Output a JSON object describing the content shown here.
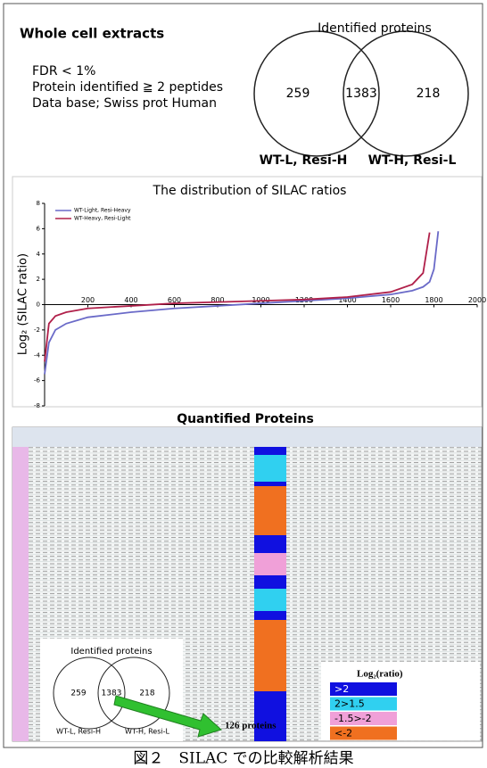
{
  "header": {
    "title": "Whole cell extracts",
    "notes": [
      "FDR < 1%",
      "Protein identified ≧ 2 peptides",
      "Data base; Swiss prot Human"
    ]
  },
  "venn": {
    "title": "Identified proteins",
    "left": "259",
    "overlap": "1383",
    "right": "218",
    "left_label": "WT-L, Resi-H",
    "right_label": "WT-H, Resi-L"
  },
  "chart_data": {
    "type": "line",
    "title": "The distribution of SILAC ratios",
    "y_label": "Log₂ (SILAC ratio)",
    "x": [
      0,
      20,
      50,
      100,
      200,
      400,
      600,
      800,
      1000,
      1200,
      1400,
      1600,
      1700,
      1750,
      1780,
      1800,
      1820
    ],
    "series": [
      {
        "name": "WT-Light, Resi-Heavy",
        "color": "#6a6ac8",
        "values": [
          -5.5,
          -3,
          -2,
          -1.5,
          -1,
          -0.6,
          -0.3,
          -0.1,
          0.1,
          0.3,
          0.5,
          0.8,
          1.1,
          1.4,
          1.8,
          2.8,
          5.8
        ]
      },
      {
        "name": "WT-Heavy, Resi-Light",
        "color": "#b0204a",
        "values": [
          -4.5,
          -1.5,
          -0.9,
          -0.6,
          -0.3,
          -0.1,
          0.1,
          0.2,
          0.3,
          0.4,
          0.6,
          1.0,
          1.6,
          2.5,
          5.7,
          null,
          null
        ]
      }
    ],
    "xlim": [
      0,
      2000
    ],
    "xticks": [
      200,
      400,
      600,
      800,
      1000,
      1200,
      1400,
      1600,
      1800,
      2000
    ],
    "ylim": [
      -8,
      8
    ],
    "yticks": [
      -8,
      -6,
      -4,
      -2,
      0,
      2,
      4,
      6,
      8
    ],
    "legend": "upper left"
  },
  "quantified": {
    "title": "Quantified Proteins",
    "inset_venn": {
      "title": "Identified proteins",
      "left": "259",
      "overlap": "1383",
      "right": "218",
      "left_label": "WT-L, Resi-H",
      "right_label": "WT-H, Resi-L"
    },
    "result": "126 proteins",
    "legend": {
      "title": "Log₂(ratio)",
      "items": [
        {
          "label": ">2",
          "color": "#1010e0"
        },
        {
          "label": "2>1.5",
          "color": "#30d0f0"
        },
        {
          "label": "-1.5>-2",
          "color": "#f0a0d8"
        },
        {
          "label": "<-2",
          "color": "#f07020"
        }
      ]
    }
  },
  "caption": "図２　SILAC での比較解析結果"
}
